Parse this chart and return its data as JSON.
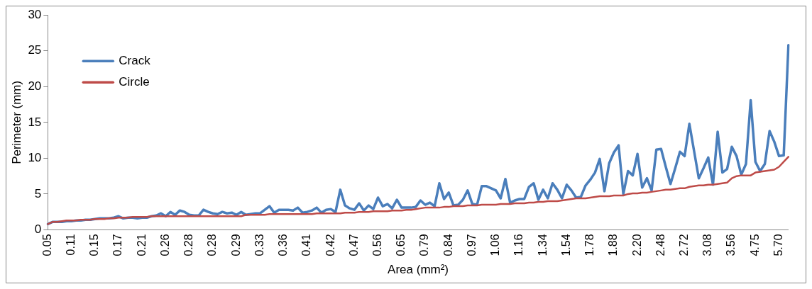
{
  "chart_data": {
    "type": "line",
    "xlabel": "Area (mm²)",
    "ylabel": "Perimeter (mm)",
    "categories": [
      "0.05",
      null,
      null,
      null,
      null,
      "0.11",
      null,
      null,
      null,
      null,
      "0.15",
      null,
      null,
      null,
      null,
      "0.17",
      null,
      null,
      null,
      null,
      "0.21",
      null,
      null,
      null,
      null,
      "0.26",
      null,
      null,
      null,
      null,
      "0.28",
      null,
      null,
      null,
      null,
      "0.28",
      null,
      null,
      null,
      null,
      "0.29",
      null,
      null,
      null,
      null,
      "0.33",
      null,
      null,
      null,
      null,
      "0.36",
      null,
      null,
      null,
      null,
      "0.41",
      null,
      null,
      null,
      null,
      "0.42",
      null,
      null,
      null,
      null,
      "0.47",
      null,
      null,
      null,
      null,
      "0.56",
      null,
      null,
      null,
      null,
      "0.65",
      null,
      null,
      null,
      null,
      "0.79",
      null,
      null,
      null,
      null,
      "0.84",
      null,
      null,
      null,
      null,
      "0.97",
      null,
      null,
      null,
      null,
      "1.06",
      null,
      null,
      null,
      null,
      "1.16",
      null,
      null,
      null,
      null,
      "1.34",
      null,
      null,
      null,
      null,
      "1.54",
      null,
      null,
      null,
      null,
      "1.78",
      null,
      null,
      null,
      null,
      "1.88",
      null,
      null,
      null,
      null,
      "2.20",
      null,
      null,
      null,
      null,
      "2.48",
      null,
      null,
      null,
      null,
      "2.72",
      null,
      null,
      null,
      null,
      "3.08",
      null,
      null,
      null,
      null,
      "3.56",
      null,
      null,
      null,
      null,
      "4.75",
      null,
      null,
      null,
      null,
      "5.70",
      null,
      null
    ],
    "series": [
      {
        "name": "Crack",
        "color": "#4a7ebb",
        "values": [
          0.8,
          1.1,
          1.1,
          1.1,
          1.2,
          1.2,
          1.3,
          1.3,
          1.4,
          1.4,
          1.5,
          1.6,
          1.6,
          1.6,
          1.7,
          1.9,
          1.6,
          1.7,
          1.7,
          1.6,
          1.7,
          1.7,
          1.9,
          2.0,
          2.3,
          1.9,
          2.5,
          2.1,
          2.7,
          2.5,
          2.1,
          2.0,
          2.0,
          2.8,
          2.5,
          2.3,
          2.2,
          2.5,
          2.3,
          2.4,
          2.1,
          2.5,
          2.1,
          2.2,
          2.3,
          2.3,
          2.8,
          3.3,
          2.4,
          2.8,
          2.8,
          2.8,
          2.7,
          3.1,
          2.4,
          2.5,
          2.7,
          3.1,
          2.4,
          2.8,
          2.9,
          2.5,
          5.6,
          3.4,
          3.0,
          2.8,
          3.7,
          2.7,
          3.4,
          2.9,
          4.5,
          3.3,
          3.6,
          3.0,
          4.2,
          3.1,
          3.1,
          3.1,
          3.2,
          4.1,
          3.5,
          3.8,
          3.3,
          6.5,
          4.3,
          5.2,
          3.4,
          3.5,
          4.2,
          5.5,
          3.6,
          3.5,
          6.1,
          6.1,
          5.8,
          5.5,
          4.4,
          7.1,
          3.8,
          4.1,
          4.3,
          4.3,
          6.0,
          6.5,
          4.2,
          5.6,
          4.4,
          6.5,
          5.6,
          4.4,
          6.3,
          5.5,
          4.5,
          4.6,
          6.2,
          7.0,
          8.0,
          9.9,
          5.4,
          9.3,
          10.8,
          11.8,
          5.0,
          8.2,
          7.6,
          10.6,
          5.9,
          7.2,
          5.5,
          11.2,
          11.3,
          8.8,
          6.4,
          8.6,
          10.9,
          10.3,
          14.8,
          11.0,
          7.2,
          8.6,
          10.1,
          6.3,
          13.7,
          8.0,
          8.5,
          11.6,
          10.3,
          7.7,
          9.2,
          18.1,
          9.5,
          8.2,
          9.2,
          13.8,
          12.3,
          10.3,
          10.4,
          25.8
        ]
      },
      {
        "name": "Circle",
        "color": "#be4b48",
        "values": [
          0.8,
          1.1,
          1.1,
          1.2,
          1.3,
          1.3,
          1.3,
          1.4,
          1.4,
          1.4,
          1.5,
          1.5,
          1.5,
          1.6,
          1.6,
          1.7,
          1.7,
          1.7,
          1.8,
          1.8,
          1.8,
          1.8,
          1.9,
          1.9,
          1.9,
          1.9,
          1.9,
          1.9,
          1.9,
          1.9,
          1.9,
          1.9,
          1.9,
          1.9,
          1.9,
          1.9,
          1.9,
          1.9,
          1.9,
          1.9,
          1.9,
          1.9,
          2.1,
          2.1,
          2.1,
          2.1,
          2.1,
          2.2,
          2.2,
          2.2,
          2.2,
          2.2,
          2.2,
          2.2,
          2.2,
          2.2,
          2.2,
          2.3,
          2.3,
          2.3,
          2.3,
          2.3,
          2.3,
          2.4,
          2.4,
          2.4,
          2.5,
          2.5,
          2.5,
          2.6,
          2.6,
          2.6,
          2.6,
          2.7,
          2.7,
          2.7,
          2.8,
          2.8,
          2.9,
          3.0,
          3.1,
          3.1,
          3.1,
          3.1,
          3.2,
          3.2,
          3.3,
          3.3,
          3.3,
          3.4,
          3.4,
          3.4,
          3.5,
          3.5,
          3.5,
          3.5,
          3.6,
          3.6,
          3.6,
          3.7,
          3.7,
          3.7,
          3.8,
          3.8,
          3.9,
          3.9,
          4.0,
          4.0,
          4.0,
          4.1,
          4.2,
          4.3,
          4.4,
          4.4,
          4.4,
          4.5,
          4.6,
          4.7,
          4.7,
          4.7,
          4.8,
          4.8,
          4.8,
          5.0,
          5.1,
          5.1,
          5.2,
          5.2,
          5.3,
          5.4,
          5.5,
          5.6,
          5.6,
          5.7,
          5.8,
          5.8,
          6.0,
          6.1,
          6.2,
          6.2,
          6.3,
          6.3,
          6.4,
          6.5,
          6.6,
          7.2,
          7.5,
          7.6,
          7.6,
          7.6,
          8.0,
          8.1,
          8.2,
          8.3,
          8.4,
          8.8,
          9.5,
          10.2
        ]
      }
    ],
    "ylim": [
      0,
      30
    ],
    "yticks": [
      0,
      5,
      10,
      15,
      20,
      25,
      30
    ],
    "grid": false,
    "legend": "top left",
    "marker": "none",
    "line_style": "solid"
  }
}
